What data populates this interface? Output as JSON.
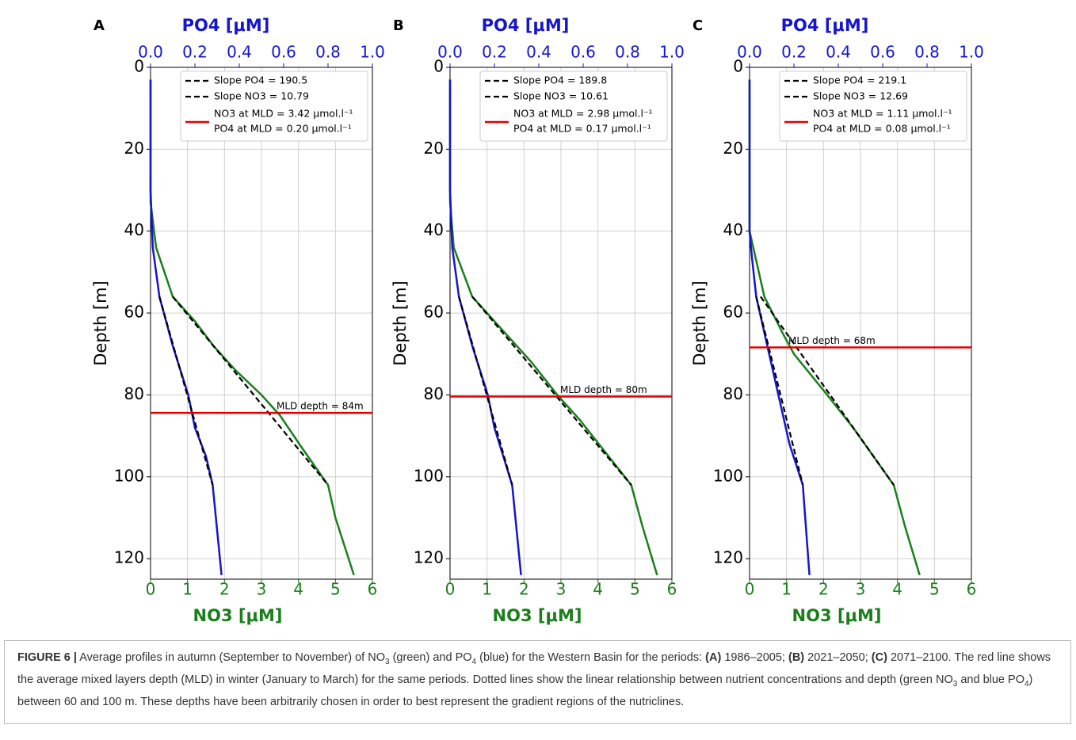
{
  "chart_data": [
    {
      "type": "line",
      "panel": "A",
      "x2_label": "PO4 [μM]",
      "x_label": "NO3 [μM]",
      "y_label": "Depth [m]",
      "y_inverted": true,
      "xlim": [
        0,
        6
      ],
      "xticks": [
        0,
        1,
        2,
        3,
        4,
        5,
        6
      ],
      "x2lim": [
        0,
        1
      ],
      "x2ticks": [
        {
          "value": 0,
          "label": "0.0"
        },
        0.2,
        0.4,
        0.6,
        0.8,
        {
          "value": 1,
          "label": "1.0"
        }
      ],
      "ylim": [
        0,
        125
      ],
      "yticks": [
        0,
        20,
        40,
        60,
        80,
        100,
        120
      ],
      "grid": true,
      "series": [
        {
          "color": "#1a7f1a",
          "x": [
            0,
            0,
            0.15,
            0.6,
            1.2,
            1.7,
            2.3,
            3.0,
            3.5,
            4.1,
            4.8,
            5.0,
            5.5
          ],
          "y": [
            3,
            33,
            44,
            56,
            62,
            68,
            74,
            80,
            85,
            93,
            102,
            110,
            124
          ]
        },
        {
          "color": "#1515d0",
          "axis": "x2",
          "x": [
            0,
            0,
            0.01,
            0.04,
            0.1,
            0.17,
            0.2,
            0.25,
            0.28,
            0.32
          ],
          "y": [
            3,
            30,
            44,
            56,
            68,
            80,
            88,
            95,
            102,
            124
          ]
        },
        {
          "name": "Slope PO4 = 190.5",
          "color": "#000000",
          "dashed": true,
          "axis": "x2",
          "x": [
            0.04,
            0.28
          ],
          "y": [
            56,
            102
          ]
        },
        {
          "name": "Slope NO3 = 10.79",
          "color": "#000000",
          "dashed": true,
          "x": [
            0.6,
            4.8
          ],
          "y": [
            56,
            102
          ]
        }
      ],
      "hlines": [
        {
          "value": 84.4,
          "color": "#e00000",
          "label": "MLD depth = 84m",
          "legend": [
            "NO3 at MLD = 3.42 μmol.l⁻¹",
            "PO4 at MLD = 0.20 μmol.l⁻¹"
          ]
        }
      ]
    },
    {
      "type": "line",
      "panel": "B",
      "x2_label": "PO4 [μM]",
      "x_label": "NO3 [μM]",
      "y_label": "Depth [m]",
      "y_inverted": true,
      "xlim": [
        0,
        6
      ],
      "xticks": [
        0,
        1,
        2,
        3,
        4,
        5,
        6
      ],
      "x2lim": [
        0,
        1
      ],
      "x2ticks": [
        {
          "value": 0,
          "label": "0.0"
        },
        0.2,
        0.4,
        0.6,
        0.8,
        {
          "value": 1,
          "label": "1.0"
        }
      ],
      "ylim": [
        0,
        125
      ],
      "yticks": [
        0,
        20,
        40,
        60,
        80,
        100,
        120
      ],
      "grid": true,
      "series": [
        {
          "color": "#1a7f1a",
          "x": [
            0,
            0,
            0.1,
            0.6,
            1.5,
            2.2,
            2.9,
            3.5,
            4.9,
            5.2,
            5.6
          ],
          "y": [
            3,
            33,
            44,
            56,
            65,
            72,
            80,
            86,
            102,
            112,
            124
          ]
        },
        {
          "color": "#1515d0",
          "axis": "x2",
          "x": [
            0,
            0,
            0.01,
            0.04,
            0.1,
            0.17,
            0.2,
            0.28,
            0.32
          ],
          "y": [
            3,
            30,
            44,
            56,
            68,
            80,
            88,
            102,
            124
          ]
        },
        {
          "name": "Slope PO4 = 189.8",
          "color": "#000000",
          "dashed": true,
          "axis": "x2",
          "x": [
            0.04,
            0.28
          ],
          "y": [
            56,
            102
          ]
        },
        {
          "name": "Slope NO3 = 10.61",
          "color": "#000000",
          "dashed": true,
          "x": [
            0.6,
            4.9
          ],
          "y": [
            56,
            102
          ]
        }
      ],
      "hlines": [
        {
          "value": 80.4,
          "color": "#e00000",
          "label": "MLD depth = 80m",
          "legend": [
            "NO3 at MLD = 2.98 μmol.l⁻¹",
            "PO4 at MLD = 0.17 μmol.l⁻¹"
          ]
        }
      ]
    },
    {
      "type": "line",
      "panel": "C",
      "x2_label": "PO4 [μM]",
      "x_label": "NO3 [μM]",
      "y_label": "Depth [m]",
      "y_inverted": true,
      "xlim": [
        0,
        6
      ],
      "xticks": [
        0,
        1,
        2,
        3,
        4,
        5,
        6
      ],
      "x2lim": [
        0,
        1
      ],
      "x2ticks": [
        {
          "value": 0,
          "label": "0.0"
        },
        0.2,
        0.4,
        0.6,
        0.8,
        {
          "value": 1,
          "label": "1.0"
        }
      ],
      "ylim": [
        0,
        125
      ],
      "yticks": [
        0,
        20,
        40,
        60,
        80,
        100,
        120
      ],
      "grid": true,
      "series": [
        {
          "color": "#1a7f1a",
          "x": [
            0,
            0,
            0.1,
            0.4,
            0.9,
            1.2,
            2.1,
            2.8,
            3.9,
            4.2,
            4.6
          ],
          "y": [
            3,
            40,
            44,
            56,
            65,
            70,
            80,
            88,
            102,
            112,
            124
          ]
        },
        {
          "color": "#1515d0",
          "axis": "x2",
          "x": [
            0,
            0,
            0.01,
            0.03,
            0.08,
            0.13,
            0.18,
            0.24,
            0.27
          ],
          "y": [
            3,
            40,
            46,
            56,
            68,
            80,
            92,
            102,
            124
          ]
        },
        {
          "name": "Slope PO4 = 219.1",
          "color": "#000000",
          "dashed": true,
          "axis": "x2",
          "x": [
            0.03,
            0.24
          ],
          "y": [
            56,
            102
          ]
        },
        {
          "name": "Slope NO3 = 12.69",
          "color": "#000000",
          "dashed": true,
          "x": [
            0.3,
            3.9
          ],
          "y": [
            56,
            102
          ]
        }
      ],
      "hlines": [
        {
          "value": 68.4,
          "color": "#e00000",
          "label": "MLD depth = 68m",
          "legend": [
            "NO3 at MLD = 1.11 μmol.l⁻¹",
            "PO4 at MLD = 0.08 μmol.l⁻¹"
          ]
        }
      ]
    }
  ],
  "caption": [
    "FIGURE 6 |",
    " Average profiles in autumn (September to November) of NO",
    "3",
    " (green) and PO",
    "4",
    " (blue) for the Western Basin for the periods: ",
    "(A)",
    " 1986–2005; ",
    "(B)",
    " 2021–2050; ",
    "(C)",
    " 2071–2100. The red line shows the average mixed layers depth (MLD) in winter (January to March) for the same periods. Dotted lines show the linear relationship between nutrient concentrations and depth (green NO",
    "3",
    " and blue PO",
    "4",
    ") between 60 and 100 m. These depths have been arbitrarily chosen in order to best represent the gradient regions of the nutriclines."
  ]
}
